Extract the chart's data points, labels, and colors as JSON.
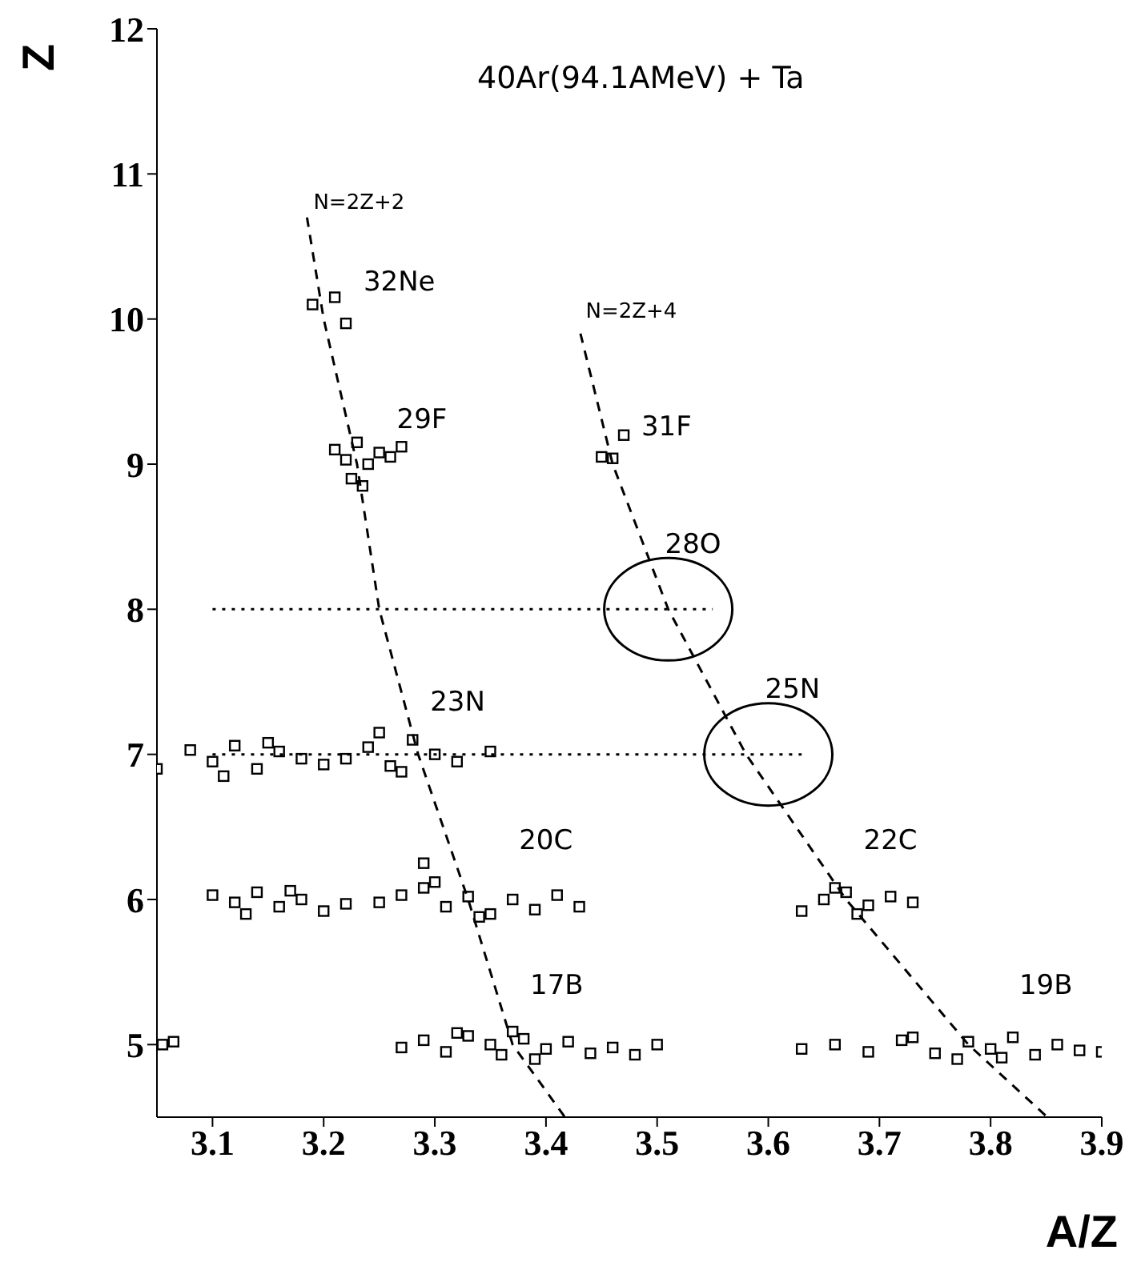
{
  "chart_data": {
    "type": "scatter",
    "title": "40Ar(94.1AMeV) + Ta",
    "xlabel": "A/Z",
    "ylabel": "Z",
    "xlim": [
      3.05,
      3.9
    ],
    "ylim": [
      4.5,
      12
    ],
    "xticks": [
      3.1,
      3.2,
      3.3,
      3.4,
      3.5,
      3.6,
      3.7,
      3.8,
      3.9
    ],
    "yticks": [
      5,
      6,
      7,
      8,
      9,
      10,
      11,
      12
    ],
    "grid": false,
    "legend": false,
    "marker": "square",
    "series": [
      {
        "color": "#000000",
        "x": [
          3.055,
          3.065,
          3.27,
          3.29,
          3.31,
          3.33,
          3.35,
          3.36,
          3.38,
          3.4,
          3.42,
          3.44,
          3.46,
          3.48,
          3.32,
          3.37,
          3.39,
          3.5,
          3.63,
          3.66,
          3.69,
          3.72,
          3.75,
          3.78,
          3.8,
          3.82,
          3.84,
          3.86,
          3.88,
          3.9,
          3.77,
          3.81,
          3.73
        ],
        "values": [
          5.0,
          5.02,
          4.98,
          5.03,
          4.95,
          5.06,
          5.0,
          4.93,
          5.04,
          4.97,
          5.02,
          4.94,
          4.98,
          4.93,
          5.08,
          5.09,
          4.9,
          5.0,
          4.97,
          5.0,
          4.95,
          5.03,
          4.94,
          5.02,
          4.97,
          5.05,
          4.93,
          5.0,
          4.96,
          4.95,
          4.9,
          4.91,
          5.05
        ]
      },
      {
        "color": "#000000",
        "x": [
          3.1,
          3.12,
          3.14,
          3.16,
          3.18,
          3.2,
          3.22,
          3.13,
          3.17,
          3.25,
          3.27,
          3.29,
          3.31,
          3.33,
          3.35,
          3.37,
          3.39,
          3.41,
          3.43,
          3.3,
          3.34,
          3.29,
          3.63,
          3.65,
          3.67,
          3.69,
          3.71,
          3.73,
          3.68,
          3.66
        ],
        "values": [
          6.03,
          5.98,
          6.05,
          5.95,
          6.0,
          5.92,
          5.97,
          5.9,
          6.06,
          5.98,
          6.03,
          6.08,
          5.95,
          6.02,
          5.9,
          6.0,
          5.93,
          6.03,
          5.95,
          6.12,
          5.88,
          6.25,
          5.92,
          6.0,
          6.05,
          5.96,
          6.02,
          5.98,
          5.9,
          6.08
        ]
      },
      {
        "color": "#000000",
        "x": [
          3.05,
          3.08,
          3.1,
          3.12,
          3.14,
          3.16,
          3.18,
          3.2,
          3.11,
          3.15,
          3.22,
          3.24,
          3.26,
          3.28,
          3.3,
          3.32,
          3.35,
          3.27,
          3.25
        ],
        "values": [
          6.9,
          7.03,
          6.95,
          7.06,
          6.9,
          7.02,
          6.97,
          6.93,
          6.85,
          7.08,
          6.97,
          7.05,
          6.92,
          7.1,
          7.0,
          6.95,
          7.02,
          6.88,
          7.15
        ]
      },
      {
        "color": "#000000",
        "x": [
          3.21,
          3.22,
          3.23,
          3.24,
          3.25,
          3.26,
          3.27,
          3.225,
          3.235,
          3.45,
          3.46,
          3.47,
          3.19,
          3.21,
          3.22
        ],
        "values": [
          9.1,
          9.03,
          9.15,
          9.0,
          9.08,
          9.05,
          9.12,
          8.9,
          8.85,
          9.05,
          9.04,
          9.2,
          10.1,
          10.15,
          9.97
        ]
      },
      {
        "type": "line",
        "marker": "none",
        "color": "#000000",
        "line_style": "dashed",
        "x": [
          3.185,
          3.2,
          3.23,
          3.25,
          3.285,
          3.33,
          3.37,
          3.417
        ],
        "values": [
          10.7,
          10,
          9,
          8,
          7,
          6,
          5,
          4.5
        ]
      },
      {
        "type": "line",
        "marker": "none",
        "color": "#000000",
        "line_style": "dashed",
        "x": [
          3.431,
          3.46,
          3.51,
          3.58,
          3.67,
          3.78,
          3.851
        ],
        "values": [
          9.9,
          9,
          8,
          7,
          6,
          5,
          4.5
        ]
      },
      {
        "type": "line",
        "marker": "none",
        "color": "#000000",
        "line_style": "dotted",
        "x": [
          3.1,
          3.55
        ],
        "values": [
          8,
          8
        ]
      },
      {
        "type": "line",
        "marker": "none",
        "color": "#000000",
        "line_style": "dotted",
        "x": [
          3.1,
          3.63
        ],
        "values": [
          7,
          7
        ]
      }
    ],
    "annotations": [
      "N=2Z+2",
      "N=2Z+4",
      "32Ne",
      "28O",
      "25N",
      "29F",
      "31F",
      "23N",
      "20C",
      "22C",
      "17B",
      "19B"
    ]
  }
}
